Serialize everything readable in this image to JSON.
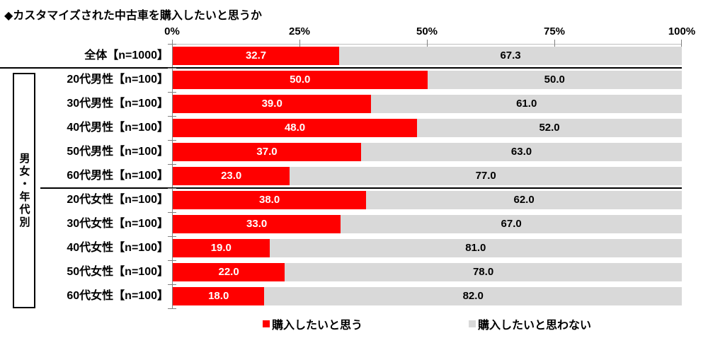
{
  "title": "◆カスタマイズされた中古車を購入したいと思うか",
  "group_label": "男女・年代別",
  "axis": {
    "ticks": [
      "0%",
      "25%",
      "50%",
      "75%",
      "100%"
    ]
  },
  "legend": [
    {
      "label": "購入したいと思う",
      "color": "#ff0000"
    },
    {
      "label": "購入したいと思わない",
      "color": "#d9d9d9"
    }
  ],
  "colors": {
    "yes_bar": "#ff0000",
    "no_bar": "#d9d9d9",
    "yes_value_text": "#ffffff",
    "no_value_text": "#000000",
    "axis": "#808080",
    "separator": "#000000"
  },
  "chart_data": {
    "type": "bar",
    "stacked": true,
    "orientation": "horizontal",
    "title": "◆カスタマイズされた中古車を購入したいと思うか",
    "categories": [
      "全体【n=1000】",
      "20代男性【n=100】",
      "30代男性【n=100】",
      "40代男性【n=100】",
      "50代男性【n=100】",
      "60代男性【n=100】",
      "20代女性【n=100】",
      "30代女性【n=100】",
      "40代女性【n=100】",
      "50代女性【n=100】",
      "60代女性【n=100】"
    ],
    "series": [
      {
        "name": "購入したいと思う",
        "color": "#ff0000",
        "values": [
          32.7,
          50.0,
          39.0,
          48.0,
          37.0,
          23.0,
          38.0,
          33.0,
          19.0,
          22.0,
          18.0
        ]
      },
      {
        "name": "購入したいと思わない",
        "color": "#d9d9d9",
        "values": [
          67.3,
          50.0,
          61.0,
          52.0,
          63.0,
          77.0,
          62.0,
          67.0,
          81.0,
          78.0,
          82.0
        ]
      }
    ],
    "xlim": [
      0,
      100
    ],
    "x_ticks": [
      "0%",
      "25%",
      "50%",
      "75%",
      "100%"
    ],
    "x_axis_position": "top",
    "value_labels": "inside-center, one decimal",
    "grid": false,
    "legend_position": "bottom",
    "group_bracket": {
      "label": "男女・年代別",
      "covers_categories": [
        1,
        10
      ]
    }
  }
}
